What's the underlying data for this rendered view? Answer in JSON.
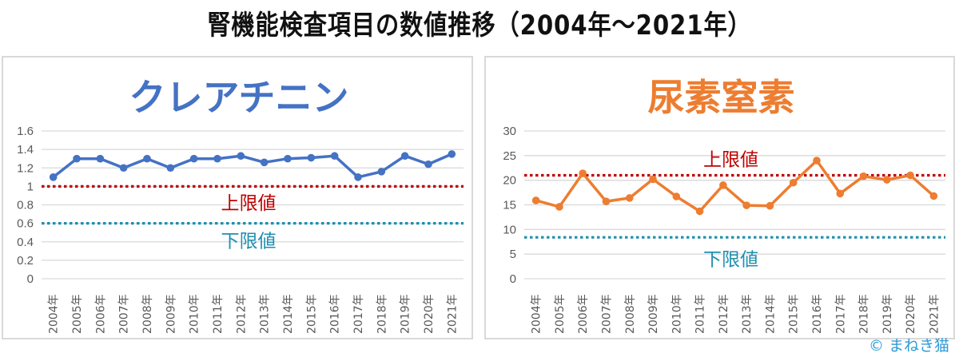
{
  "header": {
    "title": "腎機能検査項目の数値推移（2004年～2021年）"
  },
  "footer": {
    "copyright": "© まねき猫"
  },
  "chart_data": [
    {
      "type": "line",
      "title": "クレアチニン",
      "title_color": "#4472c4",
      "line_color": "#4472c4",
      "categories": [
        "2004年",
        "2005年",
        "2006年",
        "2007年",
        "2008年",
        "2009年",
        "2010年",
        "2011年",
        "2012年",
        "2013年",
        "2014年",
        "2015年",
        "2016年",
        "2017年",
        "2018年",
        "2019年",
        "2020年",
        "2021年"
      ],
      "series": [
        {
          "name": "クレアチニン",
          "values": [
            1.1,
            1.3,
            1.3,
            1.2,
            1.3,
            1.2,
            1.3,
            1.3,
            1.33,
            1.26,
            1.3,
            1.31,
            1.33,
            1.1,
            1.16,
            1.33,
            1.24,
            1.35
          ]
        }
      ],
      "ylim": [
        0,
        1.6
      ],
      "yticks": [
        "0",
        "0.2",
        "0.4",
        "0.6",
        "0.8",
        "1",
        "1.2",
        "1.4",
        "1.6"
      ],
      "ytick_values": [
        0,
        0.2,
        0.4,
        0.6,
        0.8,
        1.0,
        1.2,
        1.4,
        1.6
      ],
      "grid": true,
      "reference_lines": [
        {
          "label": "上限値",
          "value": 1.0,
          "color": "#c00000",
          "label_value": 0.84
        },
        {
          "label": "下限値",
          "value": 0.6,
          "color": "#1f8fb0",
          "label_value": 0.43
        }
      ],
      "xlabel": "",
      "ylabel": ""
    },
    {
      "type": "line",
      "title": "尿素窒素",
      "title_color": "#ed7d31",
      "line_color": "#ed7d31",
      "categories": [
        "2004年",
        "2005年",
        "2006年",
        "2007年",
        "2008年",
        "2009年",
        "2010年",
        "2011年",
        "2012年",
        "2013年",
        "2014年",
        "2015年",
        "2016年",
        "2017年",
        "2018年",
        "2019年",
        "2020年",
        "2021年"
      ],
      "series": [
        {
          "name": "尿素窒素",
          "values": [
            15.9,
            14.6,
            21.4,
            15.7,
            16.4,
            20.2,
            16.7,
            13.7,
            19.0,
            14.9,
            14.8,
            19.5,
            24.0,
            17.3,
            20.8,
            20.1,
            21.0,
            16.8
          ]
        }
      ],
      "ylim": [
        0,
        30
      ],
      "yticks": [
        "0",
        "5",
        "10",
        "15",
        "20",
        "25",
        "30"
      ],
      "ytick_values": [
        0,
        5,
        10,
        15,
        20,
        25,
        30
      ],
      "grid": true,
      "reference_lines": [
        {
          "label": "上限値",
          "value": 21,
          "color": "#c00000",
          "label_value": 24.6
        },
        {
          "label": "下限値",
          "value": 8.4,
          "color": "#1f8fb0",
          "label_value": 4.3
        }
      ],
      "xlabel": "",
      "ylabel": ""
    }
  ]
}
